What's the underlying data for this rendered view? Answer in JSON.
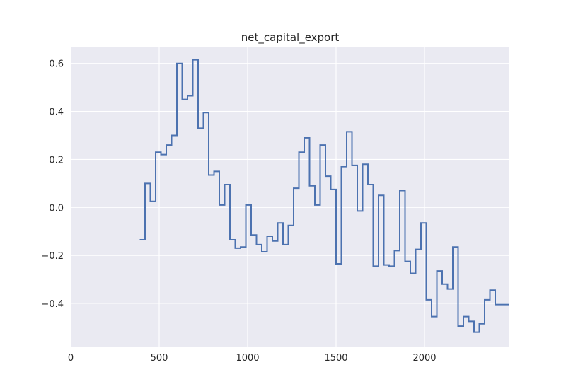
{
  "chart_data": {
    "type": "line",
    "style": "step",
    "title": "net_capital_export",
    "xlabel": "",
    "ylabel": "",
    "xlim": [
      0,
      2480
    ],
    "ylim": [
      -0.58,
      0.67
    ],
    "grid": true,
    "legend": "none",
    "x_ticks": [
      0,
      500,
      1000,
      1500,
      2000
    ],
    "x_tick_labels": [
      "0",
      "500",
      "1000",
      "1500",
      "2000"
    ],
    "y_ticks": [
      -0.4,
      -0.2,
      0.0,
      0.2,
      0.4,
      0.6
    ],
    "y_tick_labels": [
      "−0.4",
      "−0.2",
      "0.0",
      "0.2",
      "0.4",
      "0.6"
    ],
    "colors": {
      "line": "#4c72b0",
      "background": "#eaeaf2",
      "grid": "#ffffff"
    },
    "series": [
      {
        "x": [
          390,
          420,
          450,
          480,
          510,
          540,
          570,
          600,
          630,
          660,
          690,
          720,
          750,
          780,
          810,
          840,
          870,
          900,
          930,
          960,
          990,
          1020,
          1050,
          1080,
          1110,
          1140,
          1170,
          1200,
          1230,
          1260,
          1290,
          1320,
          1350,
          1380,
          1410,
          1440,
          1470,
          1500,
          1530,
          1560,
          1590,
          1620,
          1650,
          1680,
          1710,
          1740,
          1770,
          1800,
          1830,
          1860,
          1890,
          1920,
          1950,
          1980,
          2010,
          2040,
          2070,
          2100,
          2130,
          2160,
          2190,
          2220,
          2250,
          2280,
          2310,
          2340,
          2370,
          2400,
          2430,
          2460,
          2480
        ],
        "y": [
          -0.135,
          0.1,
          0.025,
          0.23,
          0.22,
          0.26,
          0.3,
          0.6,
          0.45,
          0.465,
          0.615,
          0.33,
          0.395,
          0.135,
          0.15,
          0.01,
          0.095,
          -0.135,
          -0.17,
          -0.165,
          0.01,
          -0.115,
          -0.155,
          -0.185,
          -0.12,
          -0.14,
          -0.065,
          -0.155,
          -0.075,
          0.08,
          0.23,
          0.29,
          0.09,
          0.01,
          0.26,
          0.13,
          0.075,
          -0.235,
          0.17,
          0.315,
          0.175,
          -0.015,
          0.18,
          0.095,
          -0.245,
          0.05,
          -0.24,
          -0.245,
          -0.18,
          0.07,
          -0.225,
          -0.275,
          -0.175,
          -0.065,
          -0.385,
          -0.455,
          -0.265,
          -0.32,
          -0.34,
          -0.165,
          -0.495,
          -0.455,
          -0.475,
          -0.52,
          -0.485,
          -0.385,
          -0.345,
          -0.405,
          -0.405,
          -0.405,
          -0.405
        ]
      }
    ]
  }
}
